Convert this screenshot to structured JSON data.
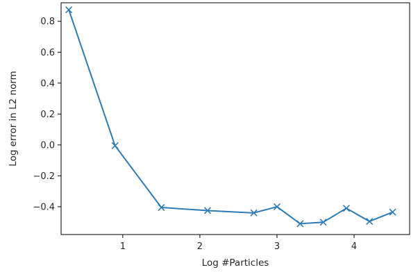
{
  "chart_data": {
    "type": "line",
    "title": "",
    "xlabel": "Log #Particles",
    "ylabel": "Log error in L2 norm",
    "xlim": [
      0.2,
      4.72
    ],
    "ylim": [
      -0.58,
      0.92
    ],
    "xticks": [
      1,
      2,
      3,
      4
    ],
    "xtick_labels": [
      "1",
      "2",
      "3",
      "4"
    ],
    "yticks": [
      0.8,
      0.6,
      0.4,
      0.2,
      0.0,
      -0.2,
      -0.4
    ],
    "ytick_labels": [
      "0.8",
      "0.6",
      "0.4",
      "0.2",
      "0.0",
      "−0.2",
      "−0.4"
    ],
    "grid": false,
    "series": [
      {
        "color": "#2d7bb6",
        "marker": "x",
        "x": [
          0.3,
          0.9,
          1.5,
          2.1,
          2.7,
          3.0,
          3.3,
          3.6,
          3.9,
          4.2,
          4.5
        ],
        "y": [
          0.875,
          -0.005,
          -0.405,
          -0.425,
          -0.44,
          -0.4,
          -0.51,
          -0.5,
          -0.41,
          -0.495,
          -0.435
        ]
      }
    ]
  }
}
